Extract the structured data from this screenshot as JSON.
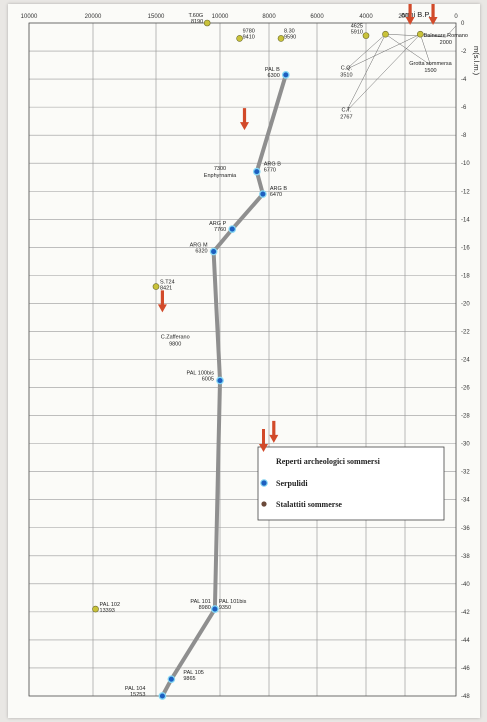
{
  "chart_data": {
    "type": "line",
    "xlabel": "anni B.P.",
    "ylabel": "m(s.l.m.)",
    "x_ticks": [
      "10000",
      "20000",
      "15000",
      "10000",
      "8000",
      "6000",
      "4000",
      "2000",
      "0"
    ],
    "y_ticks": [
      "0",
      "-2",
      "-4",
      "-6",
      "-8",
      "-10",
      "-12",
      "-14",
      "-16",
      "-18",
      "-20",
      "-22",
      "-24",
      "-26",
      "-28",
      "-30",
      "-32",
      "-34",
      "-36",
      "-38",
      "-40",
      "-42",
      "-44",
      "-46",
      "-48"
    ],
    "ylim": [
      -48,
      0
    ],
    "grid": true,
    "legend_position": "right",
    "legend": [
      {
        "label": "Reperti archeologici sommersi",
        "marker": "arrow"
      },
      {
        "label": "Serpulidi",
        "marker": "blue-dot"
      },
      {
        "label": "Stalattiti sommerse",
        "marker": "brown-dot"
      }
    ],
    "curve": [
      {
        "x": 14500,
        "y": -48
      },
      {
        "x": 13800,
        "y": -46.8
      },
      {
        "x": 10400,
        "y": -41.8
      },
      {
        "x": 10000,
        "y": -25.5
      },
      {
        "x": 10500,
        "y": -16.3
      },
      {
        "x": 9500,
        "y": -14.7
      },
      {
        "x": 8250,
        "y": -12.2
      },
      {
        "x": 8500,
        "y": -10.6
      },
      {
        "x": 7300,
        "y": -3.7
      }
    ],
    "serpulidi": [
      {
        "label": "PAL 104",
        "value": "15253",
        "x": 14500,
        "y": -48
      },
      {
        "label": "PAL 105",
        "value": "9865",
        "x": 13800,
        "y": -46.8
      },
      {
        "label": "PAL 101",
        "value": "8980",
        "x": 10400,
        "y": -41.8
      },
      {
        "label": "PAL 101bis",
        "value": "9350",
        "x": 10400,
        "y": -41.8
      },
      {
        "label": "PAL 100bis",
        "value": "6005",
        "x": 10000,
        "y": -25.5
      },
      {
        "label": "ARG M",
        "value": "6320",
        "x": 10500,
        "y": -16.3
      },
      {
        "label": "ARG P",
        "value": "7760",
        "x": 9500,
        "y": -14.7
      },
      {
        "label": "ARG B",
        "value": "6770",
        "x": 8500,
        "y": -10.6
      },
      {
        "label": "ARG B",
        "value": "6470",
        "x": 8250,
        "y": -12.2
      },
      {
        "label": "PAL B",
        "value": "6300",
        "x": 7300,
        "y": -3.7
      }
    ],
    "stalattiti": [
      {
        "label": "PAL 102",
        "value": "13393",
        "x": 19800,
        "y": -41.8
      },
      {
        "label": "S.T24",
        "value": "8421",
        "x": 15000,
        "y": -18.8
      },
      {
        "label": "T.60G",
        "value": "8190",
        "x": 11000,
        "y": 0
      },
      {
        "label": "9780",
        "value": "9410",
        "x": 9200,
        "y": -1.1
      },
      {
        "label": "8.30",
        "value": "9590",
        "x": 7500,
        "y": -1.1
      },
      {
        "label": "4625",
        "value": "5910",
        "x": 4000,
        "y": -0.9
      },
      {
        "label": "",
        "value": "",
        "x": 3000,
        "y": -0.8
      },
      {
        "label": "",
        "value": "",
        "x": 1400,
        "y": -0.8
      }
    ],
    "annotations": [
      {
        "text": "C.Q. 3510",
        "x": 4800,
        "y": -3.3
      },
      {
        "text": "C.T. 2767",
        "x": 4800,
        "y": -6.3
      },
      {
        "text": "Grotta sommersa 1500",
        "x": 1000,
        "y": -3.0
      },
      {
        "text": "Balneare Romano 2000",
        "x": 400,
        "y": -1.0
      },
      {
        "text": "7300 Enphyrnamia",
        "x": 10000,
        "y": -10.5
      },
      {
        "text": "C.Zafferano 9800",
        "x": 13500,
        "y": -22.5
      }
    ],
    "arrows": [
      {
        "x": 9000,
        "y": -7.5
      },
      {
        "x": 14500,
        "y": -20.5
      },
      {
        "x": 7800,
        "y": -29.8
      },
      {
        "x": 1800,
        "y": 0
      },
      {
        "x": 900,
        "y": 0
      }
    ]
  }
}
